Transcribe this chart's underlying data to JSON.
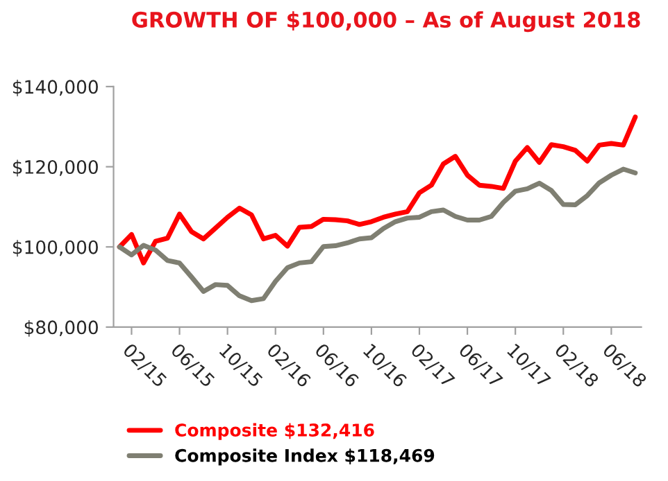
{
  "chart_data": {
    "type": "line",
    "title": "GROWTH OF $100,000 – As of August 2018",
    "categories": [
      null,
      "02/15",
      null,
      null,
      null,
      "06/15",
      null,
      null,
      null,
      "10/15",
      null,
      null,
      null,
      "02/16",
      null,
      null,
      null,
      "06/16",
      null,
      null,
      null,
      "10/16",
      null,
      null,
      null,
      "02/17",
      null,
      null,
      null,
      "06/17",
      null,
      null,
      null,
      "10/17",
      null,
      null,
      null,
      "02/18",
      null,
      null,
      null,
      "06/18",
      null,
      null
    ],
    "series": [
      {
        "name": "Composite $132,416",
        "color": "#ff0000",
        "values": [
          100000,
          103100,
          96000,
          101400,
          102200,
          108200,
          103800,
          102000,
          104700,
          107400,
          109700,
          108000,
          102000,
          102900,
          100200,
          104900,
          105100,
          106900,
          106800,
          106500,
          105600,
          106300,
          107400,
          108200,
          108800,
          113500,
          115400,
          120700,
          122600,
          117900,
          115400,
          115100,
          114600,
          121400,
          124800,
          121100,
          125500,
          125000,
          124100,
          121400,
          125400,
          125800,
          125400,
          132416
        ]
      },
      {
        "name": "Composite Index $118,469",
        "color": "#7f7f72",
        "values": [
          100000,
          98000,
          100400,
          99200,
          96600,
          96000,
          92500,
          88900,
          90600,
          90400,
          87800,
          86600,
          87100,
          91400,
          94800,
          96000,
          96300,
          100100,
          100300,
          101000,
          102000,
          102300,
          104600,
          106300,
          107200,
          107400,
          108800,
          109200,
          107600,
          106700,
          106700,
          107600,
          111100,
          113900,
          114500,
          115900,
          114100,
          110600,
          110500,
          112800,
          116000,
          117900,
          119400,
          118469
        ]
      }
    ],
    "ylim": [
      80000,
      140000
    ],
    "yticks": [
      {
        "value": 80000,
        "label": "$80,000"
      },
      {
        "value": 100000,
        "label": "$100,000"
      },
      {
        "value": 120000,
        "label": "$120,000"
      },
      {
        "value": 140000,
        "label": "$140,000"
      }
    ],
    "grid": false,
    "legend": "bottom left",
    "marker": "none",
    "line_style": "solid"
  }
}
